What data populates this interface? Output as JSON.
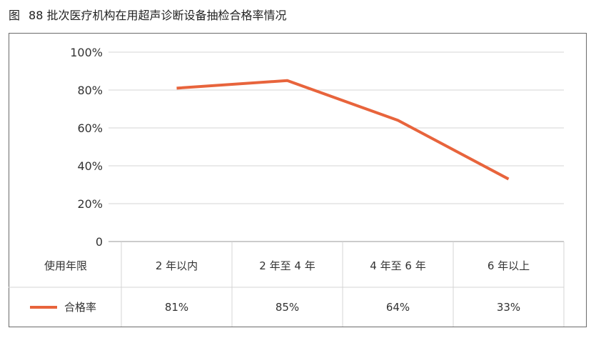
{
  "title": {
    "figure_label": "图",
    "text": "88 批次医疗机构在用超声诊断设备抽检合格率情况"
  },
  "chart_data": {
    "type": "line",
    "title": "88 批次医疗机构在用超声诊断设备抽检合格率情况",
    "categories": [
      "2 年以内",
      "2 年至 4 年",
      "4 年至 6 年",
      "6 年以上"
    ],
    "series": [
      {
        "name": "合格率",
        "values": [
          81,
          85,
          64,
          33
        ],
        "color": "#e8643c"
      }
    ],
    "value_labels": [
      "81%",
      "85%",
      "64%",
      "33%"
    ],
    "ylim": [
      0,
      100
    ],
    "yticks": [
      0,
      20,
      40,
      60,
      80,
      100
    ],
    "ytick_labels": [
      "0",
      "20%",
      "40%",
      "60%",
      "80%",
      "100%"
    ],
    "table_row_header": "使用年限",
    "grid": true,
    "legend_position": "data-table-left"
  }
}
